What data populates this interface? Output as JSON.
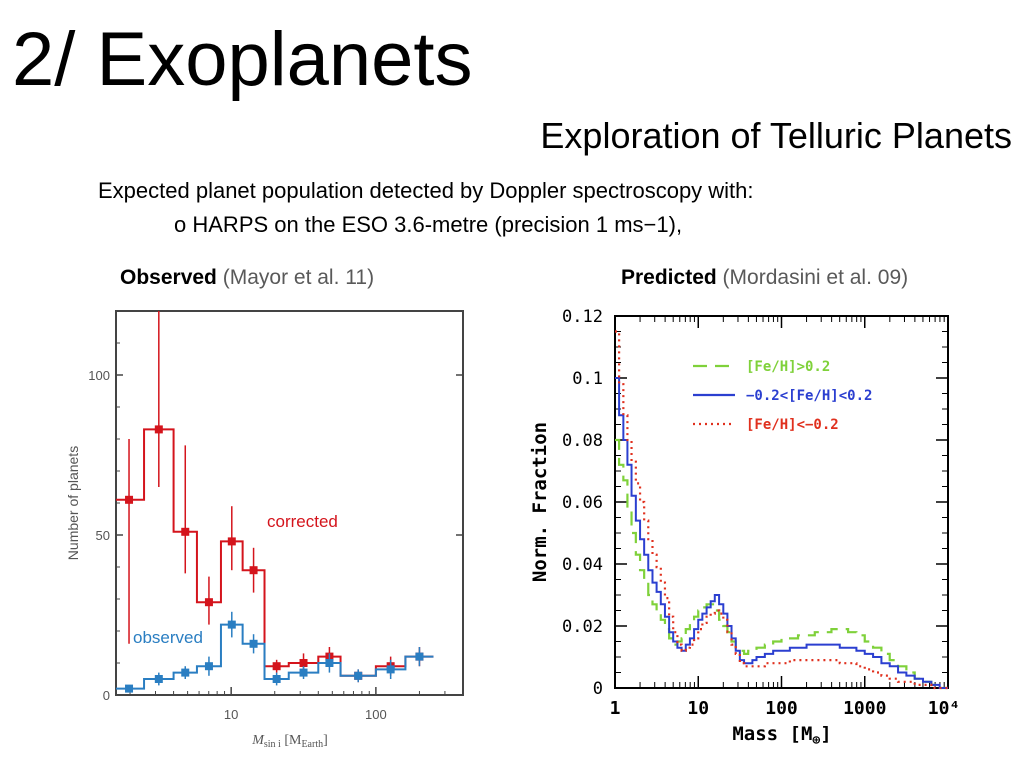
{
  "slide": {
    "title": "2/ Exoplanets",
    "subtitle": "Exploration of Telluric Planets",
    "description": "Expected planet population detected by Doppler spectroscopy with:",
    "bullet_marker": "o",
    "bullet": "HARPS on the ESO 3.6-metre (precision 1 ms−1),",
    "left_caption": {
      "bold": "Observed",
      "ref": "(Mayor et al. 11)"
    },
    "right_caption": {
      "bold": "Predicted",
      "ref": "(Mordasini et al. 09)"
    }
  },
  "chart_data": [
    {
      "type": "line",
      "subtype": "step-histogram",
      "x_scale": "log",
      "xlim": [
        1.6,
        400
      ],
      "ylim": [
        0,
        120
      ],
      "xticks": [
        10,
        100
      ],
      "yticks": [
        0,
        50,
        100
      ],
      "ylabel": "Number of planets",
      "xlabel_main": "M",
      "xlabel_sub": "sin i",
      "xlabel_unit_open": "[M",
      "xlabel_unit_sub": "Earth",
      "xlabel_unit_close": "]",
      "bin_edges": [
        1.55,
        2.5,
        4.0,
        5.8,
        8.5,
        12.0,
        17.0,
        25.0,
        40.0,
        57.0,
        100.0,
        160.0,
        250.0,
        400.0
      ],
      "series": [
        {
          "name": "corrected",
          "color": "#d4141c",
          "values": [
            61,
            83,
            51,
            29,
            48,
            39,
            9,
            10,
            12,
            6,
            9,
            12
          ],
          "err_low": [
            45,
            18,
            13,
            7,
            9,
            7,
            2,
            3,
            3,
            2,
            3,
            3
          ],
          "err_high": [
            19,
            37,
            27,
            8,
            11,
            7,
            2,
            3,
            3,
            2,
            3,
            3
          ]
        },
        {
          "name": "observed",
          "color": "#2a7ec2",
          "values": [
            2,
            5,
            7,
            9,
            22,
            16,
            5,
            7,
            10,
            6,
            8,
            12
          ],
          "err_low": [
            1,
            2,
            2,
            3,
            4,
            3,
            2,
            2,
            3,
            2,
            3,
            3
          ],
          "err_high": [
            1,
            2,
            2,
            3,
            4,
            3,
            2,
            2,
            3,
            2,
            3,
            3
          ]
        }
      ],
      "annotations": [
        {
          "text": "corrected",
          "color": "#d4141c"
        },
        {
          "text": "observed",
          "color": "#2a7ec2"
        }
      ]
    },
    {
      "type": "line",
      "subtype": "step-histogram",
      "x_scale": "log",
      "xlim": [
        1,
        10000
      ],
      "ylim": [
        0,
        0.12
      ],
      "xticks": [
        "1",
        "10",
        "100",
        "1000",
        "10⁴"
      ],
      "yticks": [
        "0",
        "0.02",
        "0.04",
        "0.06",
        "0.08",
        "0.1",
        "0.12"
      ],
      "xlabel": "Mass [M",
      "xlabel_symbol": "⊕",
      "xlabel_close": "]",
      "ylabel": "Norm. Fraction",
      "legend_position": "top-right",
      "x": [
        1,
        1.12,
        1.26,
        1.41,
        1.58,
        1.78,
        2.0,
        2.24,
        2.51,
        2.82,
        3.16,
        3.55,
        3.98,
        4.47,
        5.0,
        5.62,
        6.31,
        7.08,
        7.94,
        8.91,
        10.0,
        11.2,
        12.6,
        14.1,
        15.8,
        17.8,
        20.0,
        22.4,
        25.1,
        28.2,
        31.6,
        35.5,
        39.8,
        44.7,
        50.1,
        63.1,
        79.4,
        100,
        126,
        158,
        200,
        251,
        316,
        398,
        501,
        631,
        794,
        1000,
        1259,
        1585,
        1995,
        2512,
        3162,
        3981,
        5012,
        6310,
        7943,
        10000
      ],
      "series": [
        {
          "name": "[Fe/H]>0.2",
          "color": "#7fd13a",
          "dash": "dashed",
          "values": [
            0.08,
            0.072,
            0.067,
            0.058,
            0.05,
            0.043,
            0.038,
            0.034,
            0.03,
            0.027,
            0.025,
            0.022,
            0.019,
            0.016,
            0.014,
            0.015,
            0.016,
            0.019,
            0.021,
            0.023,
            0.025,
            0.026,
            0.027,
            0.027,
            0.025,
            0.022,
            0.02,
            0.018,
            0.015,
            0.013,
            0.012,
            0.011,
            0.012,
            0.012,
            0.013,
            0.014,
            0.015,
            0.016,
            0.016,
            0.017,
            0.017,
            0.018,
            0.018,
            0.019,
            0.019,
            0.018,
            0.017,
            0.015,
            0.013,
            0.011,
            0.009,
            0.007,
            0.005,
            0.003,
            0.002,
            0.001,
            0.0,
            0.0
          ]
        },
        {
          "name": "−0.2<[Fe/H]<0.2",
          "color": "#2b3fd0",
          "dash": "solid",
          "values": [
            0.1,
            0.088,
            0.08,
            0.072,
            0.062,
            0.054,
            0.048,
            0.043,
            0.038,
            0.034,
            0.031,
            0.027,
            0.023,
            0.018,
            0.015,
            0.013,
            0.012,
            0.014,
            0.016,
            0.019,
            0.022,
            0.024,
            0.026,
            0.028,
            0.03,
            0.027,
            0.024,
            0.02,
            0.016,
            0.012,
            0.009,
            0.008,
            0.008,
            0.009,
            0.01,
            0.011,
            0.012,
            0.012,
            0.013,
            0.013,
            0.014,
            0.014,
            0.014,
            0.014,
            0.013,
            0.013,
            0.012,
            0.011,
            0.01,
            0.008,
            0.007,
            0.005,
            0.004,
            0.003,
            0.002,
            0.001,
            0.0,
            0.0
          ]
        },
        {
          "name": "[Fe/H]<−0.2",
          "color": "#e0301e",
          "dash": "dotted",
          "values": [
            0.115,
            0.098,
            0.088,
            0.08,
            0.073,
            0.066,
            0.06,
            0.054,
            0.048,
            0.043,
            0.039,
            0.034,
            0.029,
            0.023,
            0.018,
            0.014,
            0.012,
            0.013,
            0.014,
            0.016,
            0.019,
            0.021,
            0.023,
            0.024,
            0.025,
            0.024,
            0.022,
            0.018,
            0.014,
            0.011,
            0.008,
            0.007,
            0.007,
            0.007,
            0.007,
            0.008,
            0.008,
            0.008,
            0.009,
            0.009,
            0.009,
            0.009,
            0.009,
            0.009,
            0.008,
            0.008,
            0.007,
            0.006,
            0.005,
            0.004,
            0.003,
            0.002,
            0.002,
            0.001,
            0.001,
            0.0,
            0.0,
            0.0
          ]
        }
      ]
    }
  ]
}
